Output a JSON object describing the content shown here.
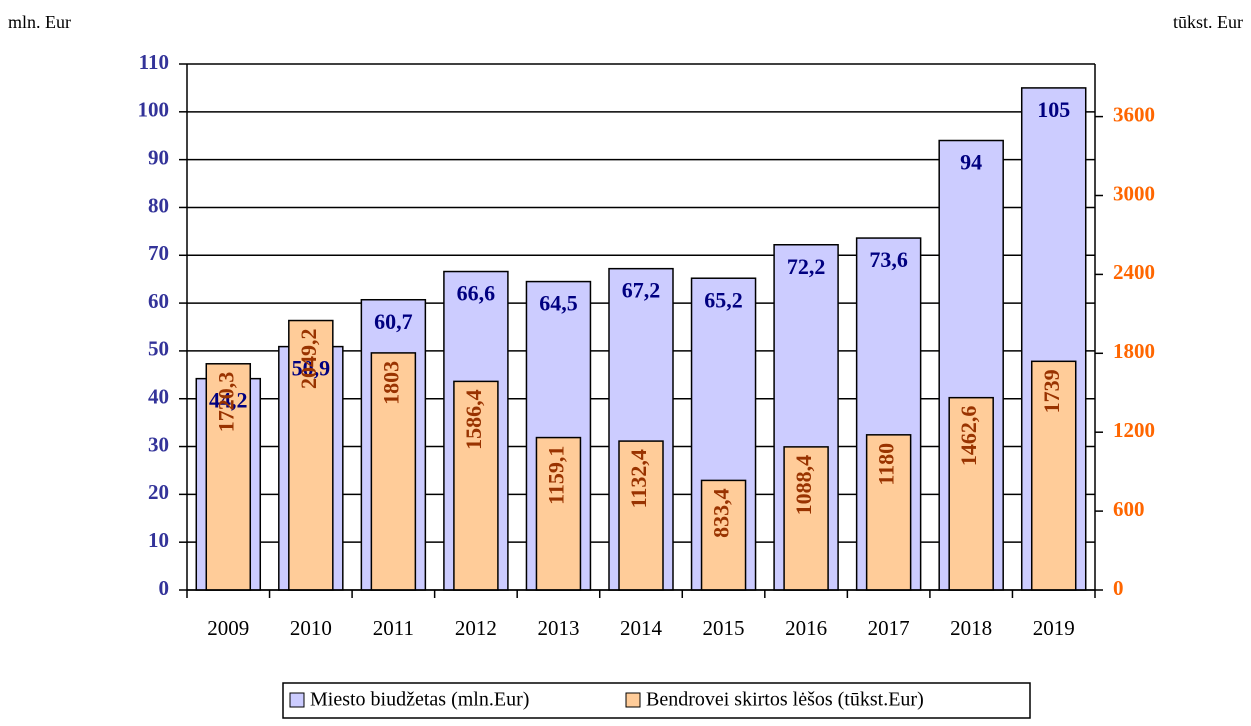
{
  "chart_data": {
    "type": "bar",
    "y_label": "mln. Eur",
    "y2_label": "tūkst. Eur",
    "categories": [
      "2009",
      "2010",
      "2011",
      "2012",
      "2013",
      "2014",
      "2015",
      "2016",
      "2017",
      "2018",
      "2019"
    ],
    "series": [
      {
        "name": "Miesto biudžetas (mln.Eur)",
        "color": "#ccccff",
        "label_color": "#000080",
        "values": [
          44.2,
          50.9,
          60.7,
          66.6,
          64.5,
          67.2,
          65.2,
          72.2,
          73.6,
          94,
          105
        ],
        "value_labels": [
          "44,2",
          "50,9",
          "60,7",
          "66,6",
          "64,5",
          "67,2",
          "65,2",
          "72,2",
          "73,6",
          "94",
          "105"
        ]
      },
      {
        "name": "Bendrovei skirtos lėšos (tūkst.Eur)",
        "color": "#ffcc99",
        "label_color": "#993300",
        "axis": "y2",
        "values": [
          1720.3,
          2049.2,
          1803,
          1586.4,
          1159.1,
          1132.4,
          833.4,
          1088.4,
          1180,
          1462.6,
          1739
        ],
        "value_labels": [
          "1720,3",
          "2049,2",
          "1803",
          "1586,4",
          "1159,1",
          "1132,4",
          "833,4",
          "1088,4",
          "1180",
          "1462,6",
          "1739"
        ]
      }
    ],
    "ylim": [
      0,
      110
    ],
    "yticks": [
      0,
      10,
      20,
      30,
      40,
      50,
      60,
      70,
      80,
      90,
      100,
      110
    ],
    "y2lim": [
      0,
      4000
    ],
    "y2ticks": [
      0,
      600,
      1200,
      1800,
      2400,
      3000,
      3600
    ],
    "ytick_color": "#333399",
    "y2tick_color": "#ff6600",
    "grid": true,
    "legend": "bottom"
  }
}
